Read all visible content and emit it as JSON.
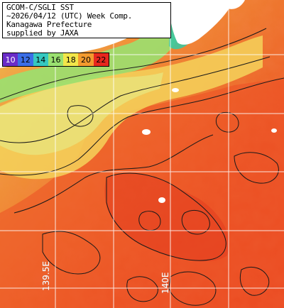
{
  "title": {
    "lines": [
      "GCOM-C/SGLI SST",
      "~2026/04/12 (UTC) Week Comp.",
      "Kanagawa Prefecture",
      "supplied by JAXA"
    ]
  },
  "colorbar": {
    "ticks": [
      {
        "label": "10",
        "color": "#6a2cc8"
      },
      {
        "label": "12",
        "color": "#3a6ee6"
      },
      {
        "label": "14",
        "color": "#36c8c0"
      },
      {
        "label": "16",
        "color": "#9ae070"
      },
      {
        "label": "18",
        "color": "#f2e64a"
      },
      {
        "label": "20",
        "color": "#f49a2e"
      },
      {
        "label": "22",
        "color": "#e8281e"
      }
    ]
  },
  "map": {
    "land_color": "#ffffff",
    "coast_colors": [
      "#3cc8a0",
      "#66d880",
      "#a4e070"
    ],
    "sea_warm_color": "#ee5a28",
    "sea_mid_color": "#f4a03c",
    "sea_cool_color": "#e8e070",
    "grid_color": "#ffffff",
    "contour_color": "#1a1a1a"
  },
  "grid_labels": {
    "lon_left": "139.5E",
    "lon_right": "140E"
  }
}
